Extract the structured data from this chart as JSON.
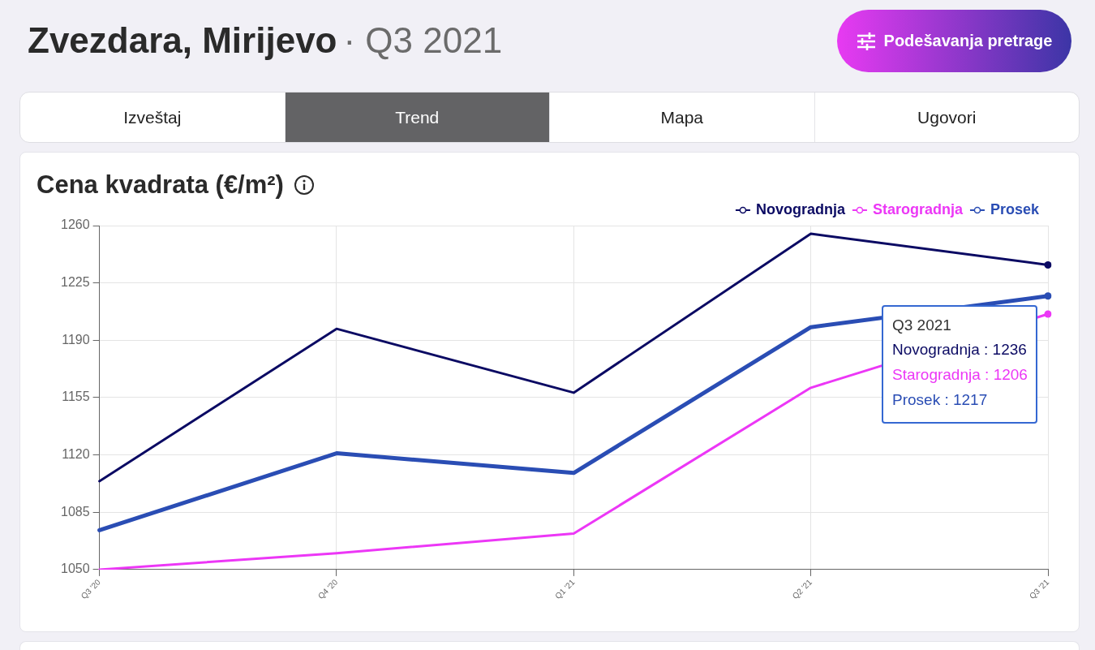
{
  "chart_data": {
    "type": "line",
    "title": "Cena kvadrata (€/m²)",
    "categories": [
      "Q3 '20",
      "Q4 '20",
      "Q1 '21",
      "Q2 '21",
      "Q3 '21"
    ],
    "series": [
      {
        "name": "Novogradnja",
        "color": "#0b0a63",
        "values": [
          1104,
          1197,
          1158,
          1255,
          1236
        ]
      },
      {
        "name": "Starogradnja",
        "color": "#ec37f6",
        "values": [
          1050,
          1060,
          1072,
          1161,
          1206
        ]
      },
      {
        "name": "Prosek",
        "color": "#2a4db4",
        "values": [
          1074,
          1121,
          1109,
          1198,
          1217
        ]
      }
    ],
    "ylim": [
      1050,
      1260
    ],
    "yticks": [
      1050,
      1085,
      1120,
      1155,
      1190,
      1225,
      1260
    ],
    "grid": true,
    "legend": "top right",
    "marker": "none",
    "line_style": "solid",
    "annotations": [
      "Zvezdara, Mirijevo",
      "· Q3 2021",
      "Podešavanja pretrage",
      "Izveštaj",
      "Trend",
      "Mapa",
      "Ugovori",
      "Q3 2021",
      "Novogradnja : 1236",
      "Starogradnja : 1206",
      "Prosek : 1217"
    ]
  }
}
